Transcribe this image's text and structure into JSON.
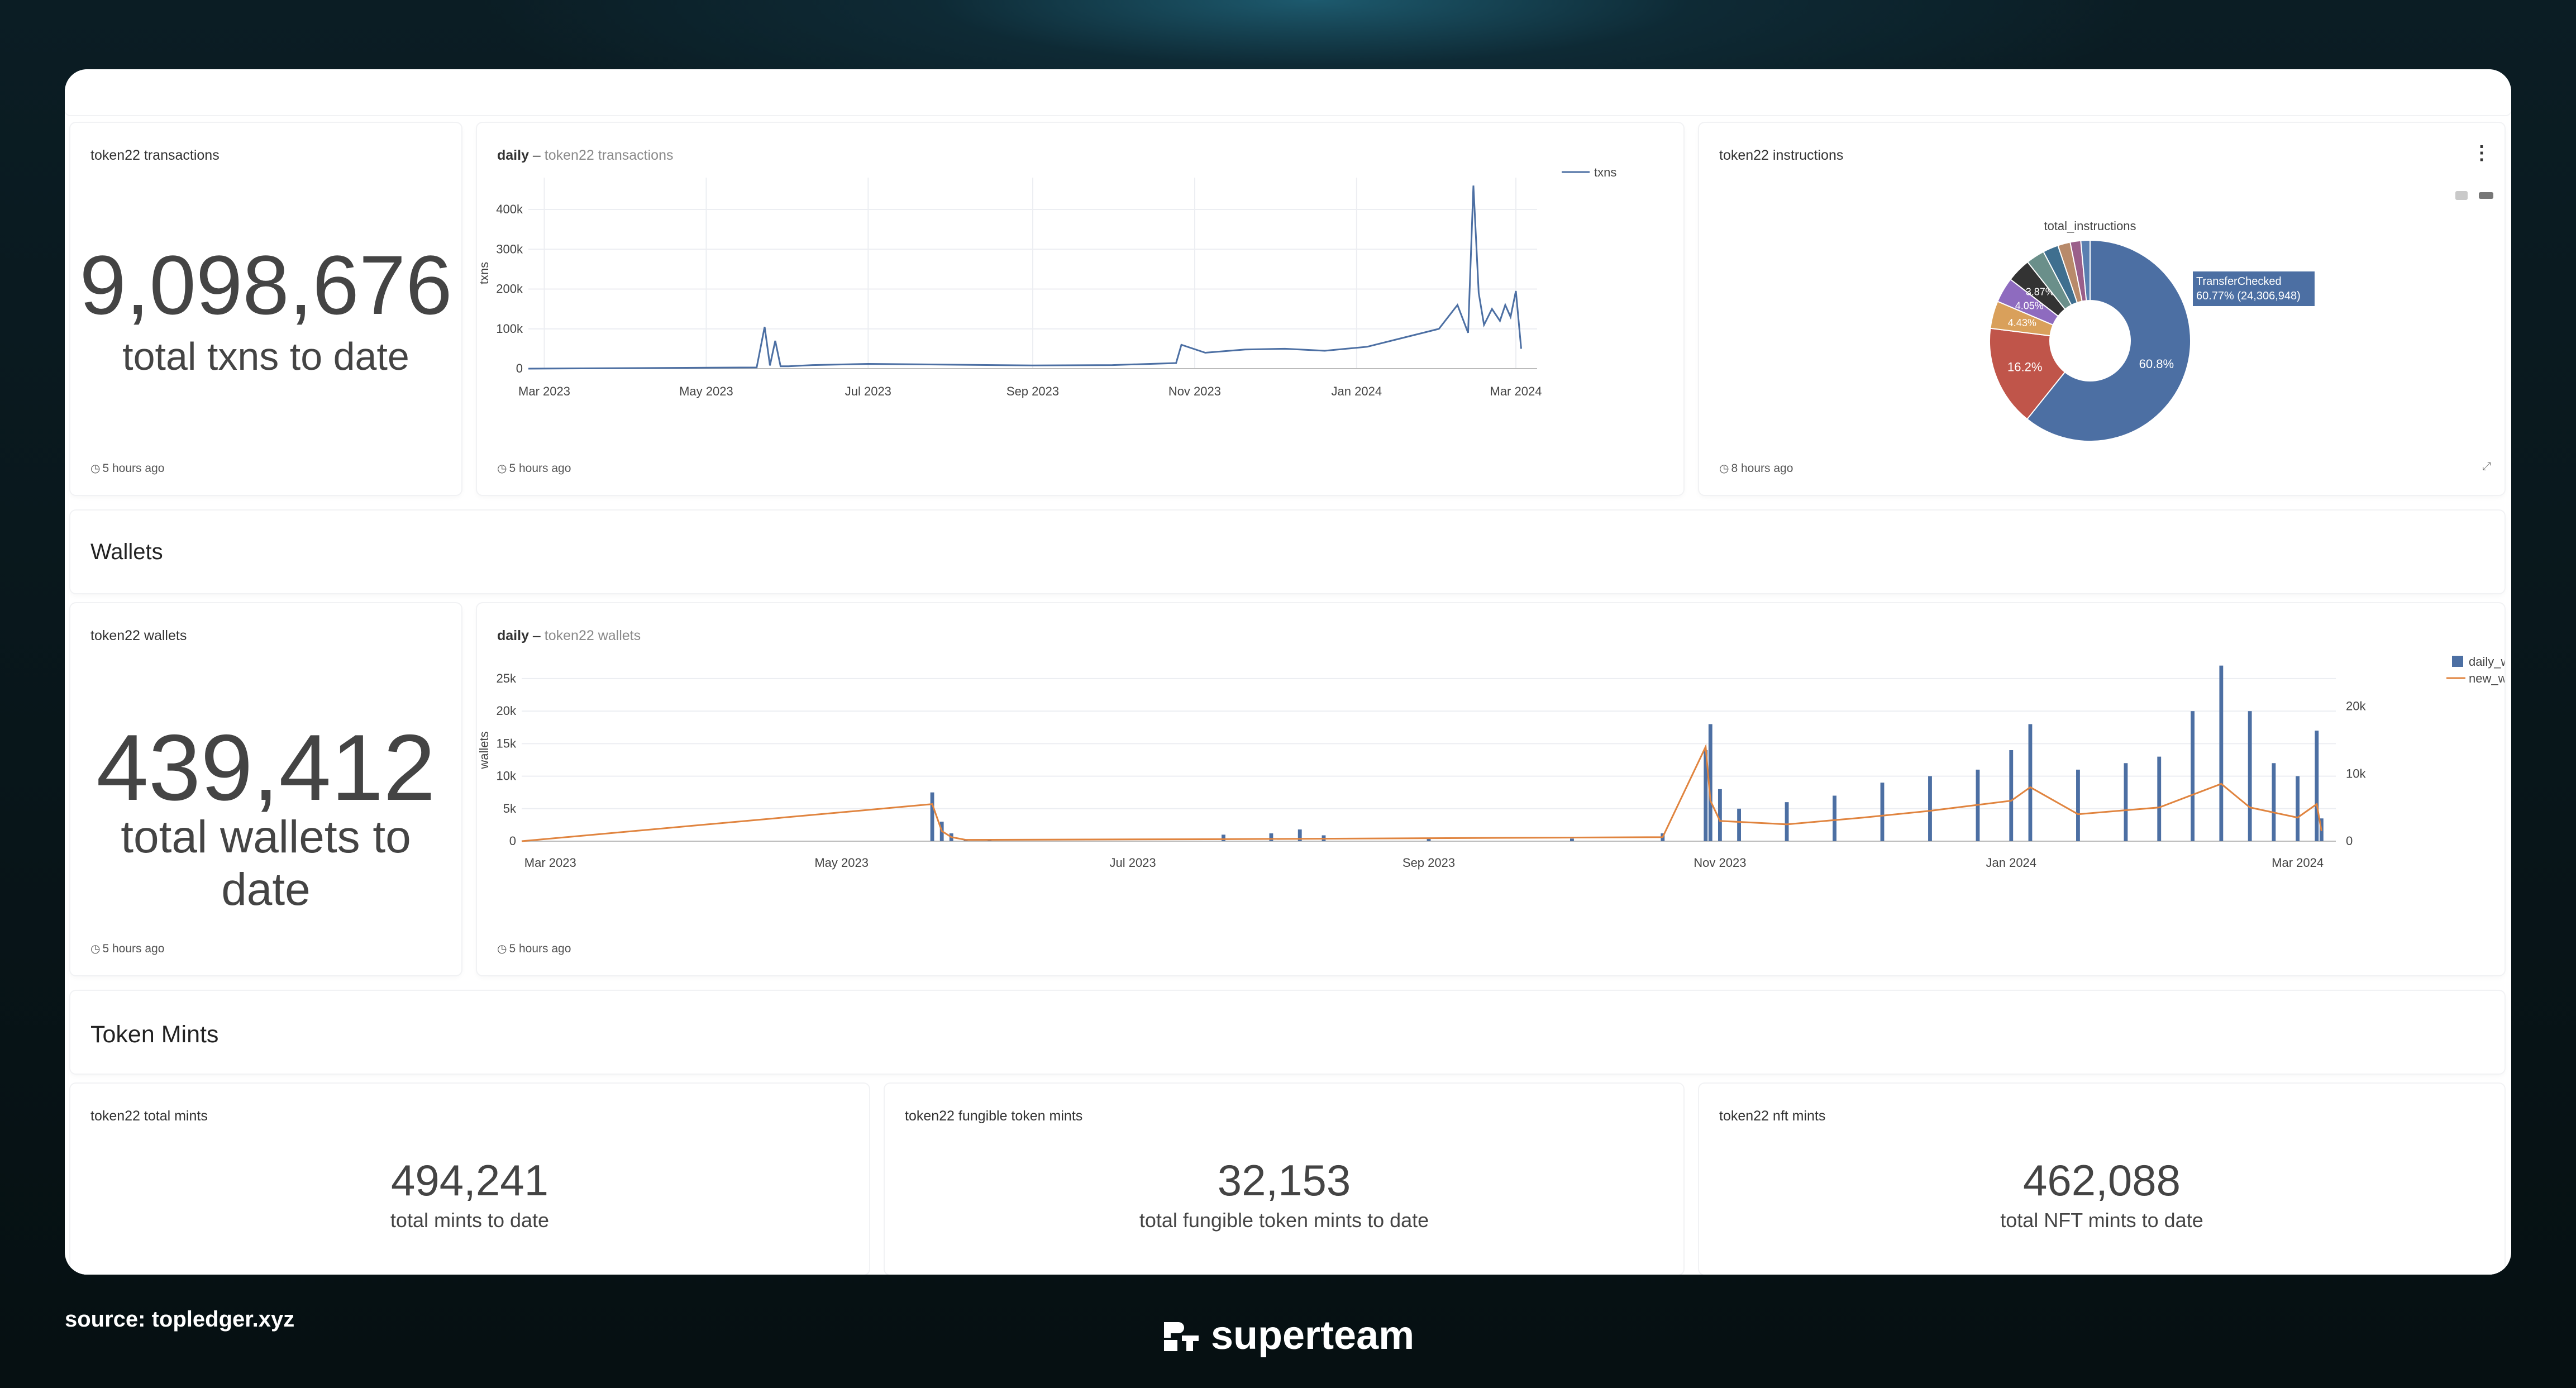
{
  "header_strip": {},
  "txns_panel": {
    "title": "token22 transactions",
    "value": "9,098,676",
    "caption": "total txns to date",
    "updated": "5 hours ago"
  },
  "daily_txns_panel": {
    "title_bold": "daily",
    "title_sep": " – ",
    "title_sub": "token22 transactions",
    "updated": "5 hours ago",
    "ylabel": "txns",
    "legend": "txns",
    "yticks": [
      "0",
      "100k",
      "200k",
      "300k",
      "400k"
    ],
    "xticks": [
      "Mar 2023",
      "May 2023",
      "Jul 2023",
      "Sep 2023",
      "Nov 2023",
      "Jan 2024",
      "Mar 2024"
    ]
  },
  "instructions_panel": {
    "title": "token22 instructions",
    "chart_title": "total_instructions",
    "updated": "8 hours ago",
    "tooltip_line1": "TransferChecked",
    "tooltip_line2": "60.77% (24,306,948)"
  },
  "wallets_section": {
    "label": "Wallets"
  },
  "wallets_panel": {
    "title": "token22 wallets",
    "value": "439,412",
    "caption": "total wallets to date",
    "updated": "5 hours ago"
  },
  "daily_wallets_panel": {
    "title_bold": "daily",
    "title_sep": " – ",
    "title_sub": "token22 wallets",
    "updated": "5 hours ago",
    "ylabel": "wallets",
    "legend": [
      "daily_wallets",
      "new_wallets"
    ],
    "yticks_left": [
      "0",
      "5k",
      "10k",
      "15k",
      "20k",
      "25k"
    ],
    "yticks_right": [
      "0",
      "10k",
      "20k"
    ],
    "xticks": [
      "Mar 2023",
      "May 2023",
      "Jul 2023",
      "Sep 2023",
      "Nov 2023",
      "Jan 2024",
      "Mar 2024"
    ]
  },
  "mints_section": {
    "label": "Token Mints"
  },
  "total_mints_panel": {
    "title": "token22 total mints",
    "value": "494,241",
    "caption": "total mints to date"
  },
  "fungible_mints_panel": {
    "title": "token22 fungible token mints",
    "value": "32,153",
    "caption": "total fungible token mints to date"
  },
  "nft_mints_panel": {
    "title": "token22 nft mints",
    "value": "462,088",
    "caption": "total NFT mints to date"
  },
  "footer": {
    "source": "source: topledger.xyz",
    "brand": "superteam"
  },
  "colors": {
    "blue": "#4c6fa3",
    "red": "#c0554a",
    "orange": "#e0843f",
    "text": "#444444"
  },
  "icons": [
    "clock-icon",
    "kebab-menu-icon",
    "camera-icon",
    "zoom-icon",
    "expand-icon",
    "superteam-logo-icon"
  ],
  "chart_data": [
    {
      "type": "line",
      "ylabel": "txns",
      "ylim": [
        0,
        480000
      ],
      "series": [
        {
          "name": "txns",
          "x": [
            "2023-02-23",
            "2023-05-20",
            "2023-05-23",
            "2023-05-25",
            "2023-05-27",
            "2023-05-29",
            "2023-06-01",
            "2023-06-10",
            "2023-07-01",
            "2023-08-01",
            "2023-09-01",
            "2023-10-01",
            "2023-10-25",
            "2023-10-27",
            "2023-11-05",
            "2023-11-20",
            "2023-12-05",
            "2023-12-20",
            "2024-01-05",
            "2024-01-20",
            "2024-02-01",
            "2024-02-08",
            "2024-02-12",
            "2024-02-14",
            "2024-02-16",
            "2024-02-18",
            "2024-02-21",
            "2024-02-24",
            "2024-02-26",
            "2024-02-28",
            "2024-03-01",
            "2024-03-03"
          ],
          "values": [
            0,
            3000,
            105000,
            8000,
            70000,
            6000,
            6000,
            9000,
            12000,
            10000,
            8000,
            9000,
            14000,
            60000,
            40000,
            48000,
            50000,
            45000,
            55000,
            80000,
            100000,
            160000,
            90000,
            460000,
            190000,
            110000,
            150000,
            120000,
            160000,
            130000,
            195000,
            50000
          ]
        }
      ],
      "legend_position": "top-right"
    },
    {
      "type": "pie",
      "title": "total_instructions",
      "labels": [
        "TransferChecked",
        "",
        "",
        "",
        "",
        "",
        "",
        "",
        "",
        ""
      ],
      "values": [
        60.77,
        16.2,
        4.43,
        4.05,
        3.87,
        3.0,
        2.5,
        2.0,
        1.7,
        1.48
      ]
    },
    {
      "type": "bar",
      "ylabel": "wallets",
      "ylim": [
        0,
        28000
      ],
      "series": [
        {
          "name": "daily_wallets",
          "x": [
            "2023-02-23",
            "2023-05-20",
            "2023-05-22",
            "2023-05-24",
            "2023-05-27",
            "2023-06-01",
            "2023-07-20",
            "2023-07-30",
            "2023-08-05",
            "2023-08-10",
            "2023-09-01",
            "2023-10-01",
            "2023-10-20",
            "2023-10-29",
            "2023-10-30",
            "2023-11-01",
            "2023-11-05",
            "2023-11-15",
            "2023-11-25",
            "2023-12-05",
            "2023-12-15",
            "2023-12-25",
            "2024-01-01",
            "2024-01-05",
            "2024-01-15",
            "2024-01-25",
            "2024-02-01",
            "2024-02-08",
            "2024-02-14",
            "2024-02-20",
            "2024-02-25",
            "2024-03-01",
            "2024-03-05",
            "2024-03-06"
          ],
          "values": [
            0,
            7500,
            3000,
            1200,
            300,
            200,
            1000,
            1200,
            1800,
            900,
            500,
            400,
            1200,
            14000,
            18000,
            8000,
            5000,
            6000,
            7000,
            9000,
            10000,
            11000,
            14000,
            18000,
            11000,
            12000,
            13000,
            20000,
            27000,
            20000,
            12000,
            10000,
            17000,
            3500
          ]
        },
        {
          "name": "new_wallets",
          "x": [
            "2023-02-23",
            "2023-05-20",
            "2023-05-22",
            "2023-05-24",
            "2023-05-27",
            "2023-07-20",
            "2023-10-20",
            "2023-10-29",
            "2023-10-30",
            "2023-11-01",
            "2023-11-15",
            "2023-12-01",
            "2023-12-15",
            "2024-01-01",
            "2024-01-05",
            "2024-01-15",
            "2024-02-01",
            "2024-02-14",
            "2024-02-20",
            "2024-03-01",
            "2024-03-05",
            "2024-03-06"
          ],
          "values": [
            0,
            5500,
            1500,
            600,
            200,
            300,
            600,
            14000,
            6000,
            3000,
            2500,
            3500,
            4500,
            6000,
            8000,
            4000,
            5000,
            8500,
            5000,
            3500,
            5500,
            1500
          ]
        }
      ],
      "legend_position": "top-right"
    }
  ]
}
